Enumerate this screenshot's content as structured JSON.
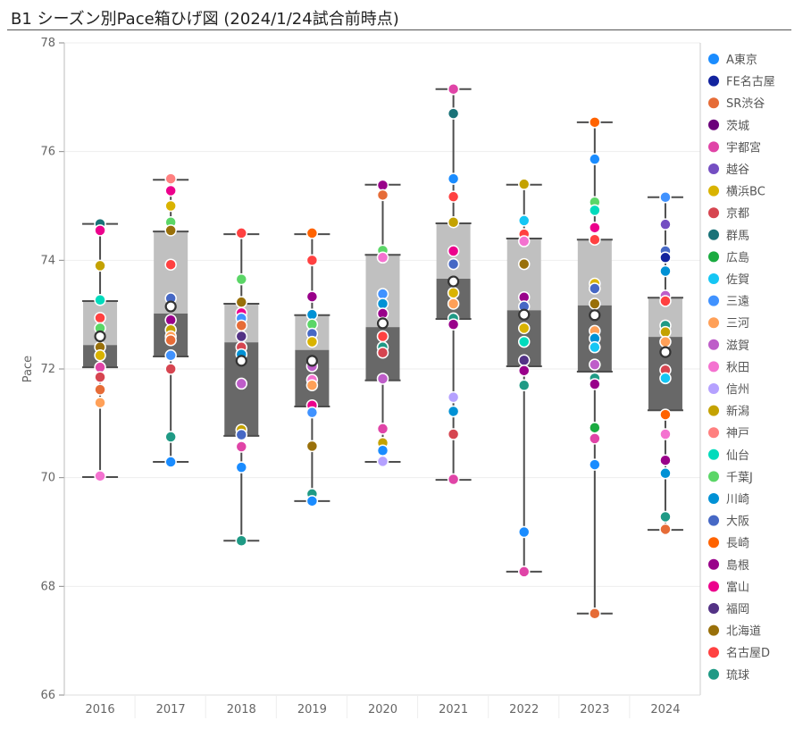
{
  "chart_data": {
    "type": "box",
    "title": "B1 シーズン別Pace箱ひげ図 (2024/1/24試合前時点)",
    "xlabel": "",
    "ylabel": "Pace",
    "ylim": [
      66,
      78
    ],
    "yticks": [
      "66",
      "68",
      "70",
      "72",
      "74",
      "76",
      "78"
    ],
    "grid": true,
    "legend_position": "right",
    "categories": [
      "2016",
      "2017",
      "2018",
      "2019",
      "2020",
      "2021",
      "2022",
      "2023",
      "2024"
    ],
    "colors": {
      "box_upper": "#c0c0c0",
      "box_lower": "#686868",
      "whisker": "#4d4d4d"
    },
    "boxes": [
      {
        "min": 70.01,
        "q1": 72.03,
        "median": 72.44,
        "q3": 73.25,
        "max": 74.67,
        "mean": 72.6
      },
      {
        "min": 70.29,
        "q1": 72.23,
        "median": 73.02,
        "q3": 74.53,
        "max": 75.48,
        "mean": 73.15
      },
      {
        "min": 68.84,
        "q1": 70.77,
        "median": 72.49,
        "q3": 73.2,
        "max": 74.48,
        "mean": 72.15
      },
      {
        "min": 69.57,
        "q1": 71.31,
        "median": 72.35,
        "q3": 72.99,
        "max": 74.48,
        "mean": 72.15
      },
      {
        "min": 70.29,
        "q1": 71.79,
        "median": 72.77,
        "q3": 74.1,
        "max": 75.39,
        "mean": 72.84
      },
      {
        "min": 69.96,
        "q1": 72.92,
        "median": 73.66,
        "q3": 74.68,
        "max": 77.15,
        "mean": 73.61
      },
      {
        "min": 68.27,
        "q1": 72.05,
        "median": 73.08,
        "q3": 74.4,
        "max": 75.39,
        "mean": 73.0
      },
      {
        "min": 67.5,
        "q1": 71.95,
        "median": 73.17,
        "q3": 74.38,
        "max": 76.54,
        "mean": 72.99
      },
      {
        "min": 69.04,
        "q1": 71.24,
        "median": 72.59,
        "q3": 73.31,
        "max": 75.16,
        "mean": 72.31
      }
    ],
    "teams": [
      {
        "name": "A東京",
        "color": "#1a8cff"
      },
      {
        "name": "FE名古屋",
        "color": "#12239e"
      },
      {
        "name": "SR渋谷",
        "color": "#e66c37"
      },
      {
        "name": "茨城",
        "color": "#6b007b"
      },
      {
        "name": "宇都宮",
        "color": "#e044a7"
      },
      {
        "name": "越谷",
        "color": "#744ec2"
      },
      {
        "name": "横浜BC",
        "color": "#d9b300"
      },
      {
        "name": "京都",
        "color": "#d64550"
      },
      {
        "name": "群馬",
        "color": "#197278"
      },
      {
        "name": "広島",
        "color": "#1aab40"
      },
      {
        "name": "佐賀",
        "color": "#15c6f4"
      },
      {
        "name": "三遠",
        "color": "#4092ff"
      },
      {
        "name": "三河",
        "color": "#ffa058"
      },
      {
        "name": "滋賀",
        "color": "#be5dc9"
      },
      {
        "name": "秋田",
        "color": "#f472d0"
      },
      {
        "name": "信州",
        "color": "#b5a1ff"
      },
      {
        "name": "新潟",
        "color": "#c4a200"
      },
      {
        "name": "神戸",
        "color": "#ff8080"
      },
      {
        "name": "仙台",
        "color": "#00dbbc"
      },
      {
        "name": "千葉J",
        "color": "#5bd667"
      },
      {
        "name": "川崎",
        "color": "#0091d5"
      },
      {
        "name": "大阪",
        "color": "#4668c5"
      },
      {
        "name": "長崎",
        "color": "#ff6300"
      },
      {
        "name": "島根",
        "color": "#99008a"
      },
      {
        "name": "富山",
        "color": "#ec008c"
      },
      {
        "name": "福岡",
        "color": "#533285"
      },
      {
        "name": "北海道",
        "color": "#99700a"
      },
      {
        "name": "名古屋D",
        "color": "#ff4141"
      },
      {
        "name": "琉球",
        "color": "#1f9a85"
      }
    ],
    "points": [
      [
        [
          "群馬",
          74.67
        ],
        [
          "富山",
          74.55
        ],
        [
          "新潟",
          73.9
        ],
        [
          "仙台",
          73.27
        ],
        [
          "名古屋D",
          72.94
        ],
        [
          "千葉J",
          72.75
        ],
        [
          "北海道",
          72.4
        ],
        [
          "横浜BC",
          72.25
        ],
        [
          "宇都宮",
          72.03
        ],
        [
          "京都",
          71.85
        ],
        [
          "SR渋谷",
          71.62
        ],
        [
          "三河",
          71.38
        ],
        [
          "秋田",
          70.03
        ]
      ],
      [
        [
          "神戸",
          75.5
        ],
        [
          "富山",
          75.28
        ],
        [
          "横浜BC",
          75.0
        ],
        [
          "千葉J",
          74.7
        ],
        [
          "北海道",
          74.55
        ],
        [
          "名古屋D",
          73.92
        ],
        [
          "大阪",
          73.3
        ],
        [
          "島根",
          72.9
        ],
        [
          "新潟",
          72.72
        ],
        [
          "三河",
          72.6
        ],
        [
          "SR渋谷",
          72.53
        ],
        [
          "三遠",
          72.25
        ],
        [
          "京都",
          72.0
        ],
        [
          "琉球",
          70.75
        ],
        [
          "A東京",
          70.29
        ]
      ],
      [
        [
          "名古屋D",
          74.5
        ],
        [
          "千葉J",
          73.65
        ],
        [
          "北海道",
          73.23
        ],
        [
          "富山",
          73.03
        ],
        [
          "三遠",
          72.93
        ],
        [
          "SR渋谷",
          72.8
        ],
        [
          "福岡",
          72.6
        ],
        [
          "京都",
          72.4
        ],
        [
          "川崎",
          72.27
        ],
        [
          "滋賀",
          71.73
        ],
        [
          "新潟",
          70.88
        ],
        [
          "大阪",
          70.79
        ],
        [
          "宇都宮",
          70.57
        ],
        [
          "A東京",
          70.19
        ],
        [
          "琉球",
          68.84
        ]
      ],
      [
        [
          "長崎",
          74.5
        ],
        [
          "名古屋D",
          74.0
        ],
        [
          "島根",
          73.33
        ],
        [
          "川崎",
          73.0
        ],
        [
          "千葉J",
          72.82
        ],
        [
          "大阪",
          72.65
        ],
        [
          "横浜BC",
          72.5
        ],
        [
          "滋賀",
          72.05
        ],
        [
          "秋田",
          71.8
        ],
        [
          "三河",
          71.7
        ],
        [
          "富山",
          71.33
        ],
        [
          "三遠",
          71.2
        ],
        [
          "北海道",
          70.58
        ],
        [
          "琉球",
          69.7
        ],
        [
          "A東京",
          69.57
        ]
      ],
      [
        [
          "島根",
          75.38
        ],
        [
          "SR渋谷",
          75.2
        ],
        [
          "千葉J",
          74.18
        ],
        [
          "秋田",
          74.05
        ],
        [
          "三遠",
          73.38
        ],
        [
          "川崎",
          73.2
        ],
        [
          "島根",
          73.02
        ],
        [
          "仙台",
          72.85
        ],
        [
          "名古屋D",
          72.6
        ],
        [
          "琉球",
          72.4
        ],
        [
          "京都",
          72.3
        ],
        [
          "滋賀",
          71.82
        ],
        [
          "宇都宮",
          70.9
        ],
        [
          "新潟",
          70.64
        ],
        [
          "A東京",
          70.5
        ],
        [
          "信州",
          70.3
        ]
      ],
      [
        [
          "宇都宮",
          77.15
        ],
        [
          "群馬",
          76.7
        ],
        [
          "A東京",
          75.5
        ],
        [
          "名古屋D",
          75.17
        ],
        [
          "新潟",
          74.7
        ],
        [
          "富山",
          74.17
        ],
        [
          "大阪",
          73.93
        ],
        [
          "横浜BC",
          73.4
        ],
        [
          "三河",
          73.2
        ],
        [
          "琉球",
          72.93
        ],
        [
          "島根",
          72.82
        ],
        [
          "信州",
          71.48
        ],
        [
          "川崎",
          71.22
        ],
        [
          "京都",
          70.8
        ],
        [
          "宇都宮",
          69.97
        ]
      ],
      [
        [
          "新潟",
          75.4
        ],
        [
          "佐賀",
          74.73
        ],
        [
          "名古屋D",
          74.48
        ],
        [
          "秋田",
          74.35
        ],
        [
          "北海道",
          73.93
        ],
        [
          "島根",
          73.32
        ],
        [
          "大阪",
          73.15
        ],
        [
          "横浜BC",
          72.75
        ],
        [
          "仙台",
          72.5
        ],
        [
          "福岡",
          72.16
        ],
        [
          "島根",
          71.97
        ],
        [
          "琉球",
          71.7
        ],
        [
          "A東京",
          69.0
        ],
        [
          "宇都宮",
          68.27
        ]
      ],
      [
        [
          "長崎",
          76.54
        ],
        [
          "A東京",
          75.86
        ],
        [
          "千葉J",
          75.07
        ],
        [
          "仙台",
          74.92
        ],
        [
          "富山",
          74.6
        ],
        [
          "名古屋D",
          74.38
        ],
        [
          "横浜BC",
          73.57
        ],
        [
          "大阪",
          73.48
        ],
        [
          "北海道",
          73.2
        ],
        [
          "三河",
          72.7
        ],
        [
          "川崎",
          72.56
        ],
        [
          "佐賀",
          72.4
        ],
        [
          "滋賀",
          72.08
        ],
        [
          "琉球",
          71.83
        ],
        [
          "島根",
          71.72
        ],
        [
          "広島",
          70.92
        ],
        [
          "宇都宮",
          70.72
        ],
        [
          "A東京",
          70.24
        ],
        [
          "SR渋谷",
          67.5
        ]
      ],
      [
        [
          "三遠",
          75.16
        ],
        [
          "越谷",
          74.66
        ],
        [
          "大阪",
          74.17
        ],
        [
          "FE名古屋",
          74.05
        ],
        [
          "川崎",
          73.8
        ],
        [
          "滋賀",
          73.35
        ],
        [
          "名古屋D",
          73.25
        ],
        [
          "琉球",
          72.8
        ],
        [
          "新潟",
          72.68
        ],
        [
          "三河",
          72.5
        ],
        [
          "京都",
          71.98
        ],
        [
          "佐賀",
          71.83
        ],
        [
          "長崎",
          71.16
        ],
        [
          "秋田",
          70.8
        ],
        [
          "島根",
          70.32
        ],
        [
          "川崎",
          70.08
        ],
        [
          "琉球",
          69.28
        ],
        [
          "SR渋谷",
          69.05
        ]
      ]
    ]
  }
}
